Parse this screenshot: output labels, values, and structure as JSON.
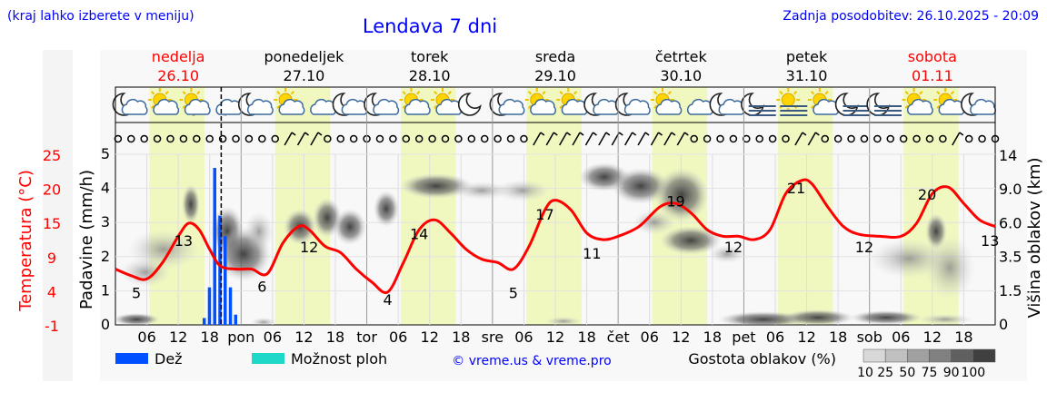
{
  "header": {
    "menu_hint": "(kraj lahko izberete v meniju)",
    "title": "Lendava 7 dni",
    "updated": "Zadnja posodobitev: 26.10.2025 - 20:09"
  },
  "days": [
    {
      "name": "nedelja",
      "date": "26.10",
      "color": "#ff0000"
    },
    {
      "name": "ponedeljek",
      "date": "27.10",
      "color": "#000000"
    },
    {
      "name": "torek",
      "date": "28.10",
      "color": "#000000"
    },
    {
      "name": "sreda",
      "date": "29.10",
      "color": "#000000"
    },
    {
      "name": "četrtek",
      "date": "30.10",
      "color": "#000000"
    },
    {
      "name": "petek",
      "date": "31.10",
      "color": "#000000"
    },
    {
      "name": "sobota",
      "date": "01.11",
      "color": "#ff0000"
    }
  ],
  "weather_icons": [
    "moon-cloud-icon",
    "sun-cloud-icon",
    "sun-cloud-drizzle-icon",
    "cloud-drizzle-icon",
    "moon-cloud-icon",
    "sun-cloud-icon",
    "cloud-icon",
    "moon-cloud-icon",
    "moon-cloud-icon",
    "sun-cloud-icon",
    "sun-cloud-icon",
    "moon-icon",
    "moon-cloud-icon",
    "sun-cloud-icon",
    "sun-cloud-icon",
    "moon-cloud-icon",
    "moon-cloud-icon",
    "sun-cloud-icon",
    "cloud-icon",
    "moon-cloud-icon",
    "moon-fog-icon",
    "sun-fog-icon",
    "sun-cloud-icon",
    "moon-fog-icon",
    "moon-fog-icon",
    "sun-cloud-icon",
    "sun-cloud-icon",
    "moon-cloud-icon"
  ],
  "wind_markers": [
    "calm",
    "calm",
    "calm",
    "calm",
    "calm",
    "calm",
    "calm",
    "calm",
    "calm",
    "calm",
    "calm",
    "calm",
    "calm",
    "barb",
    "barb",
    "barb",
    "calm",
    "calm",
    "calm",
    "calm",
    "calm",
    "calm",
    "calm",
    "calm",
    "calm",
    "calm",
    "calm",
    "calm",
    "calm",
    "calm",
    "calm",
    "calm",
    "barb",
    "barb",
    "barb",
    "barb",
    "barb",
    "barb",
    "barb",
    "barb",
    "barb",
    "barb",
    "barb",
    "barb",
    "calm",
    "calm",
    "calm",
    "calm",
    "calm",
    "calm",
    "calm",
    "calm",
    "barb",
    "barb",
    "calm",
    "calm",
    "calm",
    "calm",
    "calm",
    "calm",
    "calm",
    "calm",
    "calm",
    "calm",
    "barb",
    "calm",
    "calm",
    "calm"
  ],
  "legend": {
    "rain": "Dež",
    "thunder": "Možnost ploh",
    "credit": "© vreme.us & vreme.pro",
    "density_title": "Gostota oblakov (%)",
    "density_levels": [
      "10",
      "25",
      "50",
      "75",
      "90",
      "100"
    ]
  },
  "colors": {
    "temperature": "#ff0000",
    "rain": "#0050ff",
    "thunder": "#20d8c8",
    "daylight": "#f0f8c0",
    "link": "#0000ff"
  },
  "chart_data": {
    "type": "line",
    "x_unit": "hours from 2025-10-26 00:00",
    "x_range": [
      0,
      168
    ],
    "x_tick_labels": [
      "06",
      "12",
      "18",
      "pon",
      "06",
      "12",
      "18",
      "tor",
      "06",
      "12",
      "18",
      "sre",
      "06",
      "12",
      "18",
      "čet",
      "06",
      "12",
      "18",
      "pet",
      "06",
      "12",
      "18",
      "sob",
      "06",
      "12",
      "18"
    ],
    "x_tick_hours": [
      6,
      12,
      18,
      24,
      30,
      36,
      42,
      48,
      54,
      60,
      66,
      72,
      78,
      84,
      90,
      96,
      102,
      108,
      114,
      120,
      126,
      132,
      138,
      144,
      150,
      156,
      162
    ],
    "temperature": {
      "label": "Temperatura (°C)",
      "ticks": [
        "-1",
        "4",
        "9",
        "15",
        "20",
        "25"
      ],
      "range": [
        -1,
        25
      ],
      "hours": [
        0,
        3,
        6,
        9,
        12,
        14,
        16,
        18,
        20,
        23,
        26,
        29,
        32,
        35,
        37,
        40,
        43,
        46,
        49,
        52,
        55,
        58,
        61,
        64,
        67,
        70,
        73,
        76,
        79,
        82,
        84,
        87,
        90,
        93,
        96,
        100,
        104,
        107,
        110,
        113,
        116,
        119,
        122,
        125,
        128,
        131,
        133,
        136,
        139,
        142,
        146,
        150,
        153,
        156,
        159,
        162,
        165,
        168
      ],
      "values": [
        7.5,
        6.5,
        6,
        8.5,
        12.5,
        14.5,
        13.5,
        10.5,
        8,
        7.5,
        7.5,
        6.8,
        11.5,
        14,
        13.5,
        11,
        10,
        7.5,
        5.5,
        4,
        8.5,
        13.5,
        15,
        13,
        10.5,
        9,
        8.5,
        7.5,
        11,
        16.5,
        18,
        16.5,
        13,
        12,
        12.5,
        14,
        17,
        17.5,
        16,
        13.5,
        12.5,
        12.5,
        12,
        13.5,
        19,
        21,
        20.5,
        17,
        14,
        12.8,
        12.5,
        12.5,
        14.5,
        19,
        20,
        17.5,
        15,
        14
      ]
    },
    "temperature_labels": [
      {
        "hour": 4,
        "value": "5"
      },
      {
        "hour": 13,
        "value": "13"
      },
      {
        "hour": 28,
        "value": "6"
      },
      {
        "hour": 37,
        "value": "12"
      },
      {
        "hour": 52,
        "value": "4"
      },
      {
        "hour": 58,
        "value": "14"
      },
      {
        "hour": 76,
        "value": "5"
      },
      {
        "hour": 82,
        "value": "17"
      },
      {
        "hour": 91,
        "value": "11"
      },
      {
        "hour": 107,
        "value": "19"
      },
      {
        "hour": 118,
        "value": "12"
      },
      {
        "hour": 130,
        "value": "21"
      },
      {
        "hour": 143,
        "value": "12"
      },
      {
        "hour": 155,
        "value": "20"
      },
      {
        "hour": 167,
        "value": "13"
      }
    ],
    "precipitation": {
      "label": "Padavine (mm/h)",
      "ticks": [
        "0",
        "1",
        "2",
        "3",
        "4",
        "5"
      ],
      "range": [
        0,
        5
      ],
      "hours": [
        17,
        18,
        19,
        20,
        21,
        22,
        23
      ],
      "values": [
        0.2,
        1.1,
        4.6,
        3.2,
        2.6,
        1.1,
        0.3
      ]
    },
    "cloud_height": {
      "label": "Višina oblakov (km)",
      "ticks": [
        "0",
        "1.5",
        "3.5",
        "6.0",
        "9.0",
        "14"
      ]
    },
    "now_hour": 20.2,
    "daylight_hours": [
      [
        6.5,
        17
      ],
      [
        30.5,
        41
      ],
      [
        54.5,
        65
      ],
      [
        78.5,
        89
      ],
      [
        102.5,
        113
      ],
      [
        126.5,
        137
      ],
      [
        150.5,
        161
      ]
    ]
  }
}
